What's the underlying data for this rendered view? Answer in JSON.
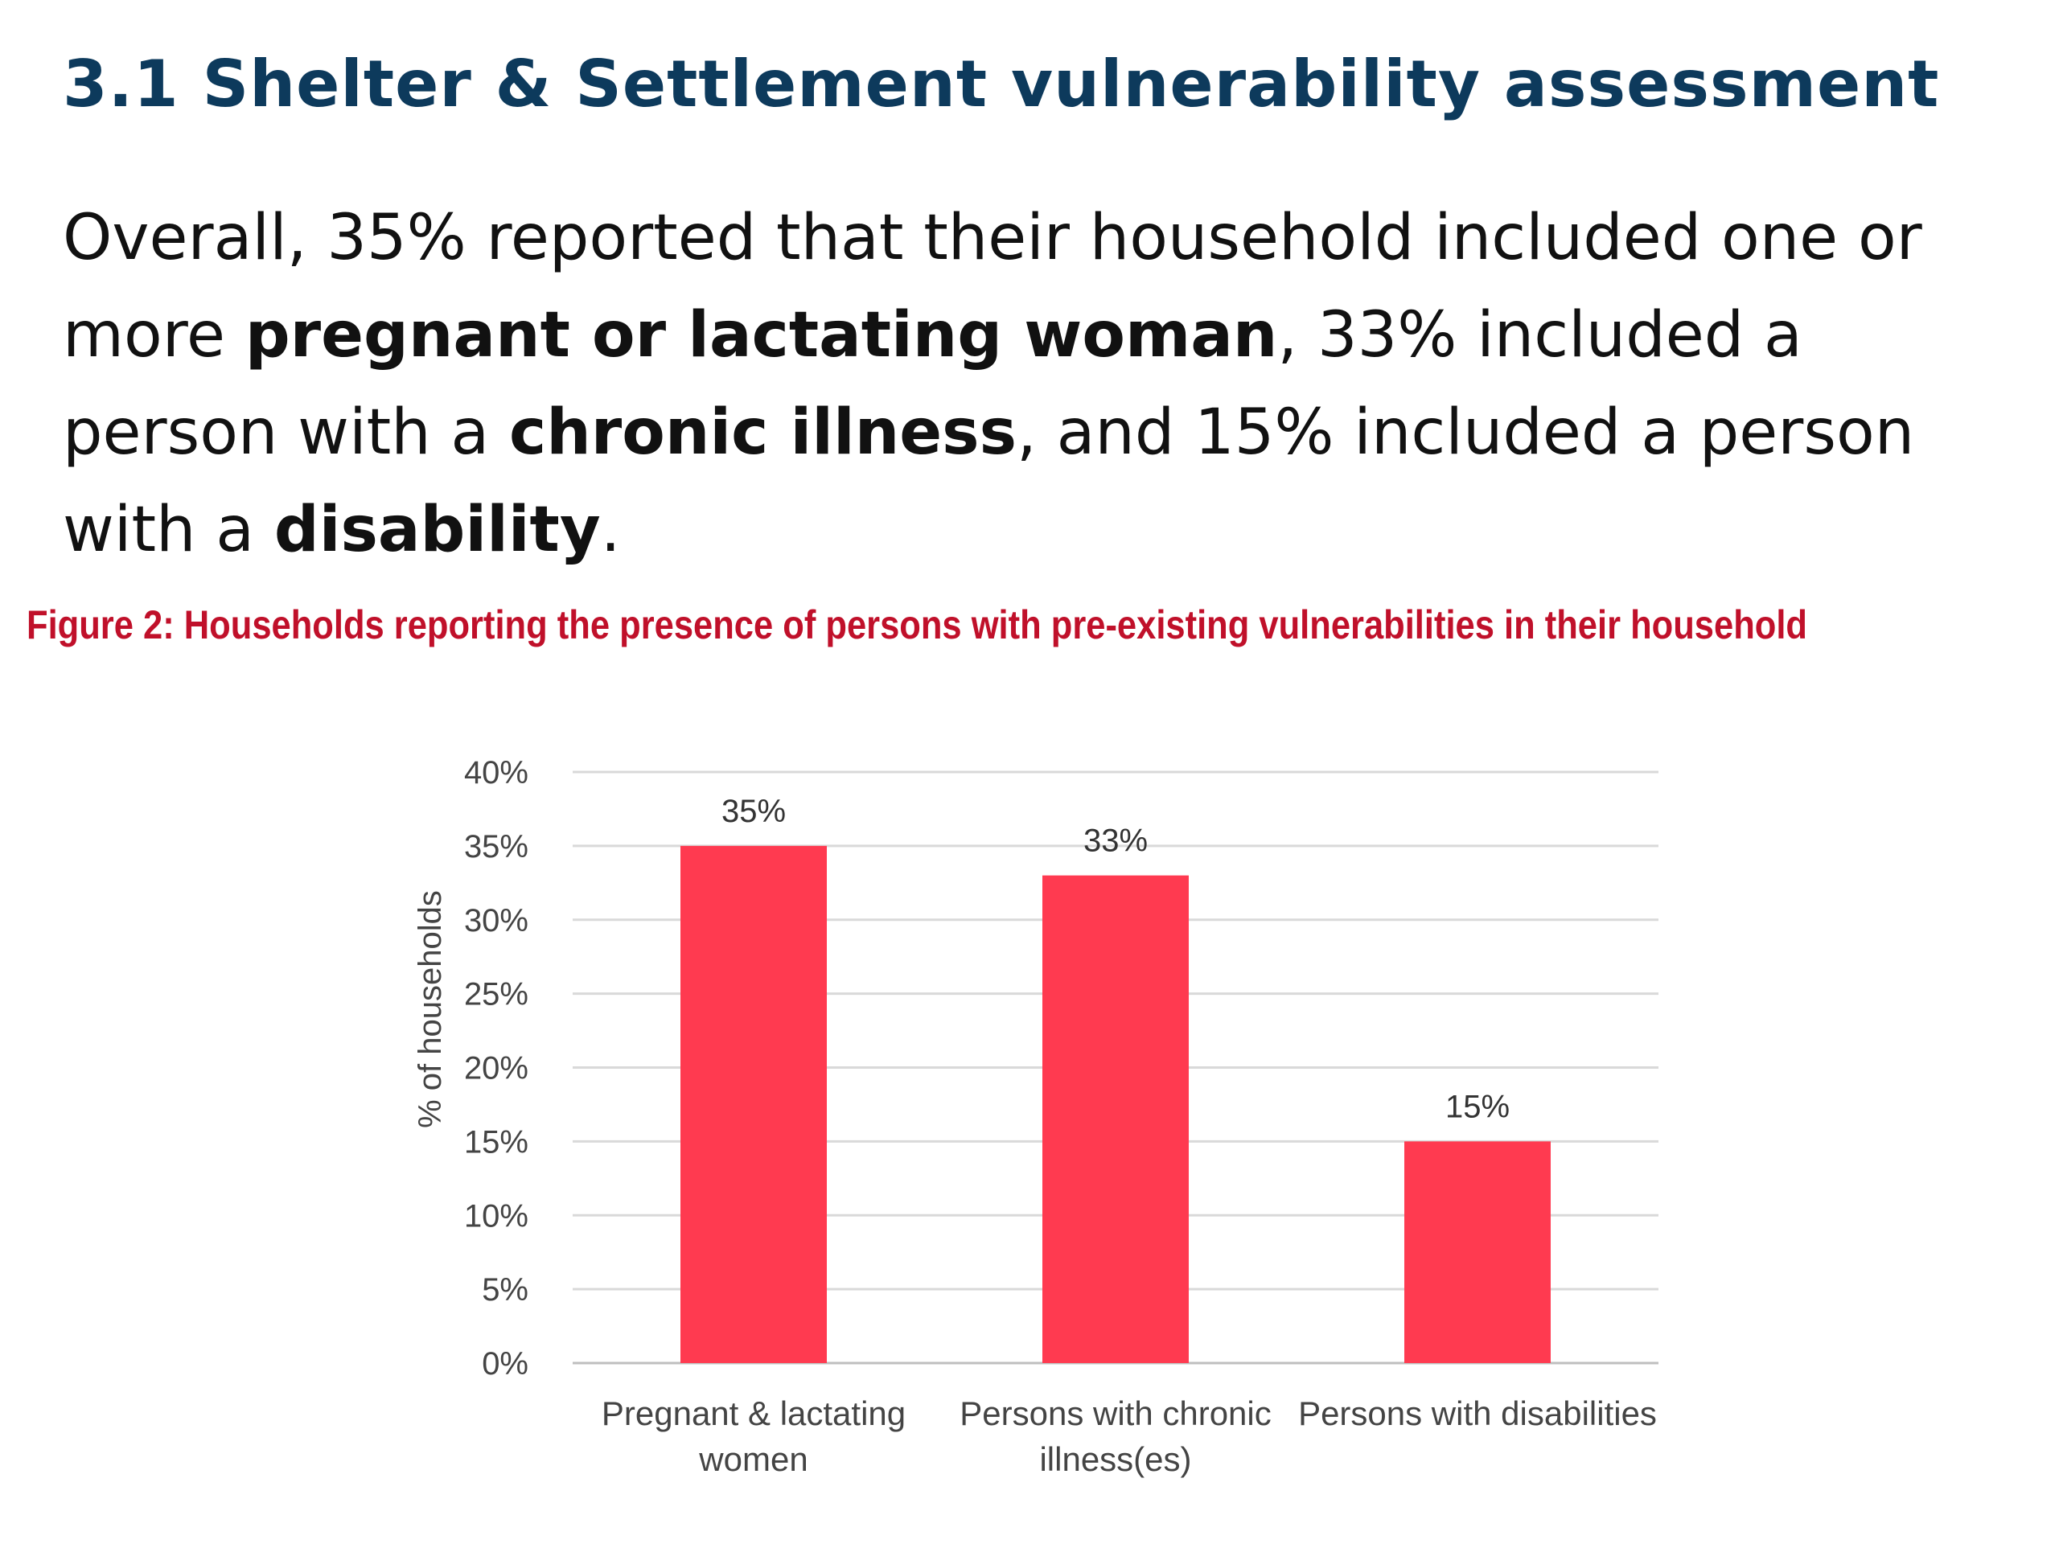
{
  "slide": {
    "title": "3.1 Shelter & Settlement vulnerability assessment",
    "body": {
      "s1": "Overall, 35% reported that their household included one or more ",
      "b1": "pregnant or lactating woman",
      "s2": ", 33% included a person with a ",
      "b2": "chronic illness",
      "s3": ", and 15% included a person with a ",
      "b3": "disability",
      "s4": "."
    }
  },
  "colors": {
    "bar": "#ff3a50",
    "title": "#0d3a5c",
    "caption": "#c0102a",
    "grid": "#d9d9d9"
  },
  "chart_data": {
    "type": "bar",
    "title": "Figure 2: Households reporting the presence of persons with pre-existing vulnerabilities in their household",
    "categories": [
      [
        "Pregnant & lactating",
        "women"
      ],
      [
        "Persons with chronic",
        "illness(es)"
      ],
      [
        "Persons with disabilities"
      ]
    ],
    "values": [
      35,
      33,
      15
    ],
    "value_labels": [
      "35%",
      "33%",
      "15%"
    ],
    "xlabel": "",
    "ylabel": "% of households",
    "ylim": [
      0,
      40
    ],
    "yticks": [
      0,
      5,
      10,
      15,
      20,
      25,
      30,
      35,
      40
    ],
    "ytick_labels": [
      "0%",
      "5%",
      "10%",
      "15%",
      "20%",
      "25%",
      "30%",
      "35%",
      "40%"
    ],
    "grid": true,
    "legend": "none"
  }
}
